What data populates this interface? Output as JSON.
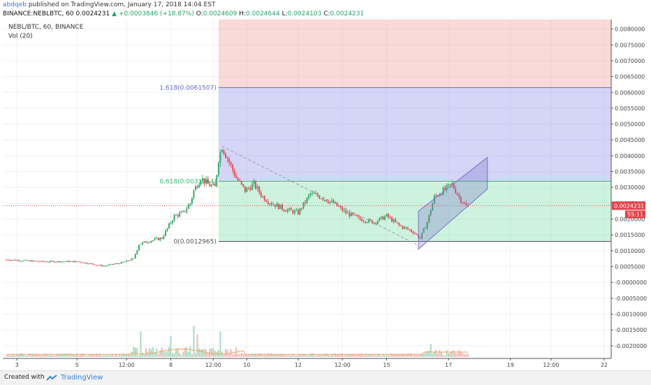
{
  "header": {
    "author": "abdqeb",
    "published": " published on TradingView.com, January 17, 2018 14:04 EST",
    "symbol_line": "BINANCE:NEBLBTC, 60",
    "last": "0.0024231",
    "change": "+0.0003846 (+18.87%)",
    "o_label": "O:",
    "o_value": "0.0024609",
    "h_label": "H:",
    "h_value": "0.0024644",
    "l_label": "L:",
    "l_value": "0.0024103",
    "c_label": "C:",
    "c_value": "0.0024231"
  },
  "legend": {
    "title": "NEBL/BTC, 60, BINANCE",
    "vol": "Vol (20)"
  },
  "footer": {
    "created": "Created with",
    "brand": "TradingView"
  },
  "chart_data": {
    "type": "candlestick",
    "ylim": [
      -0.0024,
      0.0083
    ],
    "y_ticks": [
      "0.0080000",
      "0.0075000",
      "0.0070000",
      "0.0065000",
      "0.0060000",
      "0.0055000",
      "0.0050000",
      "0.0045000",
      "0.0040000",
      "0.0035000",
      "0.0030000",
      "0.0025000",
      "0.0020000",
      "0.0015000",
      "0.0010000",
      "0.0005000",
      "-0.0000000",
      "-0.0005000",
      "-0.0010000",
      "-0.0015000",
      "-0.0020000"
    ],
    "y_tick_values": [
      0.008,
      0.0075,
      0.007,
      0.0065,
      0.006,
      0.0055,
      0.005,
      0.0045,
      0.004,
      0.0035,
      0.003,
      0.0025,
      0.002,
      0.0015,
      0.001,
      0.0005,
      0,
      -0.0005,
      -0.001,
      -0.0015,
      -0.002
    ],
    "x_ticks": [
      "3",
      "5",
      "12:00",
      "8",
      "12:00",
      "10",
      "12",
      "12:00",
      "15",
      "17",
      "19",
      "12:00",
      "22"
    ],
    "x_tick_index": [
      6,
      40,
      68,
      93,
      117,
      136,
      165,
      190,
      215,
      250,
      285,
      308,
      338
    ],
    "price_label": "0.0024231",
    "countdown_label": "55:11",
    "last_price": 0.0024231,
    "fib_start_index": 120,
    "fib_levels": [
      {
        "label": "1.618(0.0061507)",
        "value": 0.0061507,
        "color": "#6666cc"
      },
      {
        "label": "0.618(0.0031964)",
        "value": 0.0031964,
        "color": "#2fbf71"
      },
      {
        "label": "0(0.0012965)",
        "value": 0.0012965,
        "color": "#555555"
      }
    ],
    "fib_zones": [
      {
        "from": 0.0061507,
        "to": 0.0083,
        "color": "rgba(240,150,140,0.35)"
      },
      {
        "from": 0.0031964,
        "to": 0.0061507,
        "color": "rgba(150,150,235,0.40)"
      },
      {
        "from": 0.0012965,
        "to": 0.0031964,
        "color": "rgba(130,225,175,0.40)"
      }
    ],
    "trend_line": {
      "from": [
        122,
        0.0043
      ],
      "to": [
        232,
        0.0012
      ]
    },
    "channel": {
      "lower": [
        [
          233,
          0.00105
        ],
        [
          272,
          0.00295
        ]
      ],
      "upper": [
        [
          233,
          0.00225
        ],
        [
          272,
          0.00395
        ]
      ]
    },
    "keypoints": [
      [
        0,
        0.00072
      ],
      [
        20,
        0.00066
      ],
      [
        40,
        0.00066
      ],
      [
        55,
        0.00052
      ],
      [
        65,
        0.00062
      ],
      [
        72,
        0.00075
      ],
      [
        75,
        0.0012
      ],
      [
        80,
        0.0013
      ],
      [
        88,
        0.0014
      ],
      [
        95,
        0.0021
      ],
      [
        100,
        0.0022
      ],
      [
        104,
        0.0025
      ],
      [
        106,
        0.0029
      ],
      [
        110,
        0.0033
      ],
      [
        114,
        0.0031
      ],
      [
        118,
        0.003
      ],
      [
        120,
        0.0039
      ],
      [
        122,
        0.0043
      ],
      [
        126,
        0.0038
      ],
      [
        130,
        0.0033
      ],
      [
        135,
        0.0029
      ],
      [
        140,
        0.0031
      ],
      [
        145,
        0.0027
      ],
      [
        150,
        0.0025
      ],
      [
        158,
        0.0023
      ],
      [
        165,
        0.0022
      ],
      [
        172,
        0.0028
      ],
      [
        178,
        0.0027
      ],
      [
        185,
        0.0025
      ],
      [
        192,
        0.0022
      ],
      [
        200,
        0.002
      ],
      [
        208,
        0.0019
      ],
      [
        215,
        0.0021
      ],
      [
        222,
        0.0018
      ],
      [
        230,
        0.0016
      ],
      [
        234,
        0.0014
      ],
      [
        238,
        0.0019
      ],
      [
        242,
        0.0027
      ],
      [
        247,
        0.0029
      ],
      [
        252,
        0.0031
      ],
      [
        256,
        0.0027
      ],
      [
        260,
        0.0024
      ]
    ],
    "vol_spikes": [
      [
        76,
        0.00085
      ],
      [
        93,
        0.0007
      ],
      [
        106,
        0.00103
      ],
      [
        108,
        0.00075
      ],
      [
        121,
        0.00085
      ],
      [
        240,
        0.00043
      ]
    ],
    "candle_count": 262
  }
}
